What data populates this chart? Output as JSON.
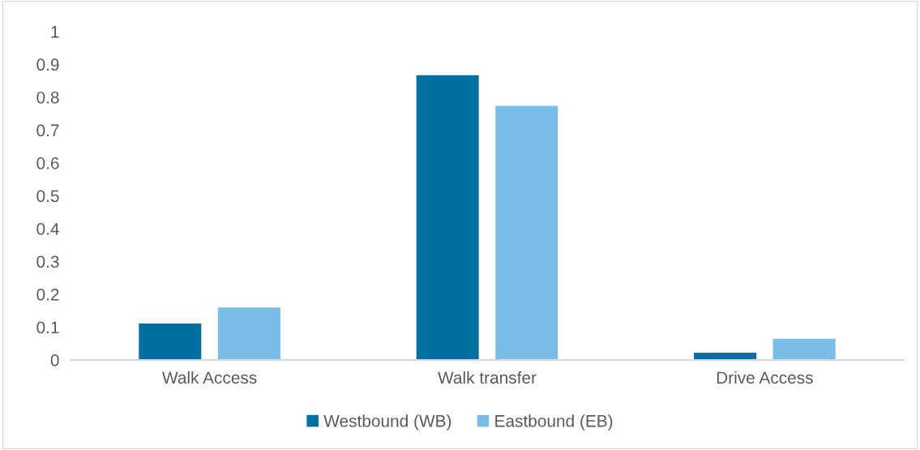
{
  "chart_data": {
    "type": "bar",
    "categories": [
      "Walk Access",
      "Walk transfer",
      "Drive Access"
    ],
    "series": [
      {
        "name": "Westbound (WB)",
        "color": "#0070a0",
        "values": [
          0.111,
          0.867,
          0.022
        ]
      },
      {
        "name": "Eastbound (EB)",
        "color": "#78bee8",
        "values": [
          0.16,
          0.774,
          0.065
        ]
      }
    ],
    "ylim": [
      0,
      1
    ],
    "yticks": [
      0,
      0.1,
      0.2,
      0.3,
      0.4,
      0.5,
      0.6,
      0.7,
      0.8,
      0.9,
      1
    ],
    "grid": false,
    "legend": "bottom"
  }
}
